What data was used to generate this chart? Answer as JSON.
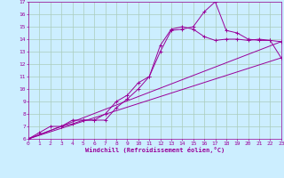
{
  "xlabel": "Windchill (Refroidissement éolien,°C)",
  "bg_color": "#cceeff",
  "grid_color": "#aaccbb",
  "line_color": "#990099",
  "xlim": [
    0,
    23
  ],
  "ylim": [
    6,
    17
  ],
  "xticks": [
    0,
    1,
    2,
    3,
    4,
    5,
    6,
    7,
    8,
    9,
    10,
    11,
    12,
    13,
    14,
    15,
    16,
    17,
    18,
    19,
    20,
    21,
    22,
    23
  ],
  "yticks": [
    6,
    7,
    8,
    9,
    10,
    11,
    12,
    13,
    14,
    15,
    16,
    17
  ],
  "line1_x": [
    0,
    1,
    2,
    3,
    4,
    5,
    6,
    7,
    8,
    9,
    10,
    11,
    12,
    13,
    14,
    15,
    16,
    17,
    18,
    19,
    20,
    21,
    22,
    23
  ],
  "line1_y": [
    6.0,
    6.5,
    7.0,
    7.0,
    7.5,
    7.5,
    7.5,
    8.0,
    9.0,
    9.5,
    10.5,
    11.0,
    13.0,
    14.7,
    14.8,
    15.0,
    16.2,
    17.0,
    14.7,
    14.5,
    14.0,
    13.9,
    13.9,
    13.8
  ],
  "line2_x": [
    0,
    3,
    4,
    5,
    6,
    7,
    8,
    9,
    10,
    11,
    12,
    13,
    14,
    15,
    16,
    17,
    18,
    19,
    20,
    21,
    22,
    23
  ],
  "line2_y": [
    6.0,
    7.0,
    7.2,
    7.5,
    7.5,
    7.5,
    8.5,
    9.2,
    10.0,
    11.0,
    13.5,
    14.8,
    15.0,
    14.8,
    14.2,
    13.9,
    14.0,
    14.0,
    13.9,
    14.0,
    13.9,
    12.5
  ],
  "line3_x": [
    0,
    23
  ],
  "line3_y": [
    6.0,
    12.5
  ],
  "line4_x": [
    0,
    23
  ],
  "line4_y": [
    6.0,
    13.8
  ]
}
